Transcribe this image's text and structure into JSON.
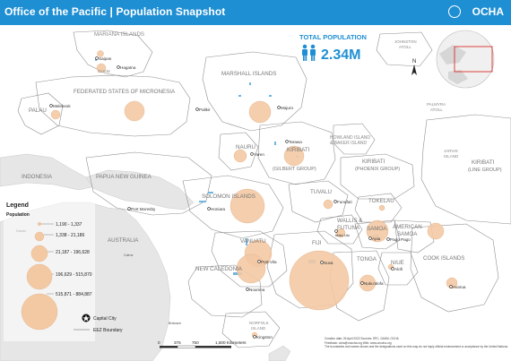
{
  "header": {
    "title": "Office of the Pacific | Population Snapshot",
    "org": "OCHA",
    "org_icon": "un-emblem-icon"
  },
  "total_population": {
    "label": "TOTAL POPULATION",
    "value": "2.34M",
    "icon": "people-icon",
    "color": "#1f8fd3"
  },
  "north_arrow": {
    "label": "N"
  },
  "regions": {
    "mariana": "MARIANA ISLANDS",
    "guam": "GUAM",
    "fsm": "FEDERATED STATES OF MICRONESIA",
    "palau": "PALAU",
    "marshall": "MARSHALL ISLANDS",
    "nauru": "NAURU",
    "kiribati_g": "KIRIBATI",
    "kiribati_g2": "(GILBERT GROUP)",
    "howland1": "HOWLAND ISLAND",
    "howland2": "& BAKER ISLAND",
    "kiribati_p": "KIRIBATI",
    "kiribati_p2": "(PHOENIX GROUP)",
    "kiribati_l": "KIRIBATI",
    "kiribati_l2": "(LINE GROUP)",
    "johnston1": "JOHNSTON",
    "johnston2": "ATOLL",
    "palmyra1": "PALMYRA",
    "palmyra2": "ATOLL",
    "jarvis1": "JARVIS",
    "jarvis2": "ISLAND",
    "indonesia": "INDONESIA",
    "png": "PAPUA NEW GUINEA",
    "solomon": "SOLOMON ISLANDS",
    "tuvalu": "TUVALU",
    "tokelau": "TOKELAU",
    "wallis1": "WALLIS &",
    "wallis2": "FUTUNA",
    "samoa": "SAMOA",
    "amsamoa1": "AMERICAN",
    "amsamoa2": "SAMOA",
    "australia": "AUSTRALIA",
    "vanuatu": "VANUATU",
    "fiji": "FIJI",
    "tonga": "TONGA",
    "niue": "NIUE",
    "cook": "COOK ISLANDS",
    "newcal": "NEW CALEDONIA",
    "norfolk1": "NORFOLK",
    "norfolk2": "ISLAND"
  },
  "capitals": {
    "saipan": "Saipan",
    "hagatna": "Hagatna",
    "melekeok": "Melekeok",
    "palikir": "Palikir",
    "majuro": "Majuro",
    "yaren": "Yaren",
    "tarawa": "Tarawa",
    "funafuti": "Funafuti",
    "honiara": "Honiara",
    "port_moresby": "Port Moresby",
    "port_vila": "Port-Vila",
    "noumea": "Noumea",
    "suva": "Suva",
    "matautu": "Matu Utu",
    "apia": "Apia",
    "pago": "Pago Pago",
    "alofi": "Alofi",
    "nukualofa": "Nuku'alofa",
    "avarua": "Avarua",
    "kingston": "Kingston",
    "darwin": "Darwin",
    "cairns": "Cairns",
    "brisbane": "Brisbane"
  },
  "legend": {
    "title": "Legend",
    "subtitle": "Population",
    "bins": [
      {
        "label": "1,190 - 1,337"
      },
      {
        "label": "1,338 - 21,186"
      },
      {
        "label": "21,187 - 196,628"
      },
      {
        "label": "196,629 - 515,870"
      },
      {
        "label": "515,871 - 884,887"
      }
    ],
    "capital_label": "Capital City",
    "eez_label": "EEZ Boundary",
    "circle_color": "#f3c9a4"
  },
  "scale": {
    "ticks": [
      "0",
      "375",
      "750",
      "1,500 Kilometers"
    ]
  },
  "footer": {
    "line1": "Creation date: 26 April 2022   Sources: SPC, GADM, OCHA",
    "line2": "Feedback: ocha@unocha.org   Web: www.unocha.org",
    "line3": "The boundaries and names shown and the designations used on this map do not imply official endorsement or acceptance by the United Nations."
  },
  "colors": {
    "header": "#1f8fd3",
    "sea": "#ffffff",
    "land": "#e4e4e4",
    "eez": "#8a8a8a",
    "bubble": "#f3c9a4",
    "island": "#9fd0ec"
  }
}
